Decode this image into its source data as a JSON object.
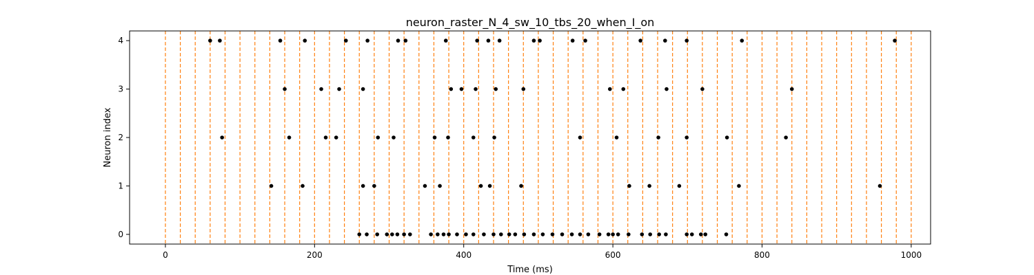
{
  "chart_data": {
    "type": "scatter",
    "title": "neuron_raster_N_4_sw_10_tbs_20_when_I_on",
    "xlabel": "Time (ms)",
    "ylabel": "Neuron index",
    "xlim": [
      -48,
      1026
    ],
    "ylim": [
      -0.2,
      4.2
    ],
    "xticks": [
      0,
      200,
      400,
      600,
      800,
      1000
    ],
    "yticks": [
      0,
      1,
      2,
      3,
      4
    ],
    "grid": false,
    "vertical_lines": {
      "color": "#ff7f0e",
      "style": "dashed",
      "x": [
        0,
        20,
        40,
        60,
        80,
        100,
        120,
        140,
        160,
        180,
        200,
        220,
        240,
        260,
        280,
        300,
        320,
        340,
        360,
        380,
        400,
        420,
        440,
        460,
        480,
        500,
        520,
        540,
        560,
        580,
        600,
        620,
        640,
        660,
        680,
        700,
        720,
        740,
        760,
        780,
        800,
        820,
        840,
        860,
        880,
        900,
        920,
        940,
        960,
        980,
        1000
      ]
    },
    "marker_color": "#000000",
    "series": [
      {
        "neuron": 4,
        "x": [
          60,
          73,
          154,
          187,
          242,
          271,
          312,
          322,
          376,
          418,
          433,
          448,
          494,
          502,
          546,
          563,
          637,
          670,
          699,
          773,
          978
        ]
      },
      {
        "neuron": 3,
        "x": [
          160,
          209,
          233,
          265,
          383,
          397,
          416,
          443,
          480,
          596,
          614,
          672,
          720,
          840
        ]
      },
      {
        "neuron": 2,
        "x": [
          76,
          166,
          215,
          229,
          285,
          306,
          361,
          379,
          413,
          441,
          556,
          605,
          661,
          699,
          753,
          832
        ]
      },
      {
        "neuron": 1,
        "x": [
          142,
          184,
          265,
          280,
          348,
          368,
          423,
          435,
          477,
          622,
          649,
          689,
          769,
          958
        ]
      },
      {
        "neuron": 0,
        "x": [
          260,
          270,
          284,
          297,
          304,
          311,
          320,
          328,
          356,
          365,
          373,
          380,
          391,
          403,
          413,
          427,
          440,
          450,
          461,
          469,
          481,
          494,
          506,
          519,
          532,
          545,
          556,
          567,
          582,
          594,
          600,
          607,
          621,
          639,
          650,
          662,
          671,
          699,
          706,
          718,
          724,
          752
        ]
      }
    ]
  }
}
